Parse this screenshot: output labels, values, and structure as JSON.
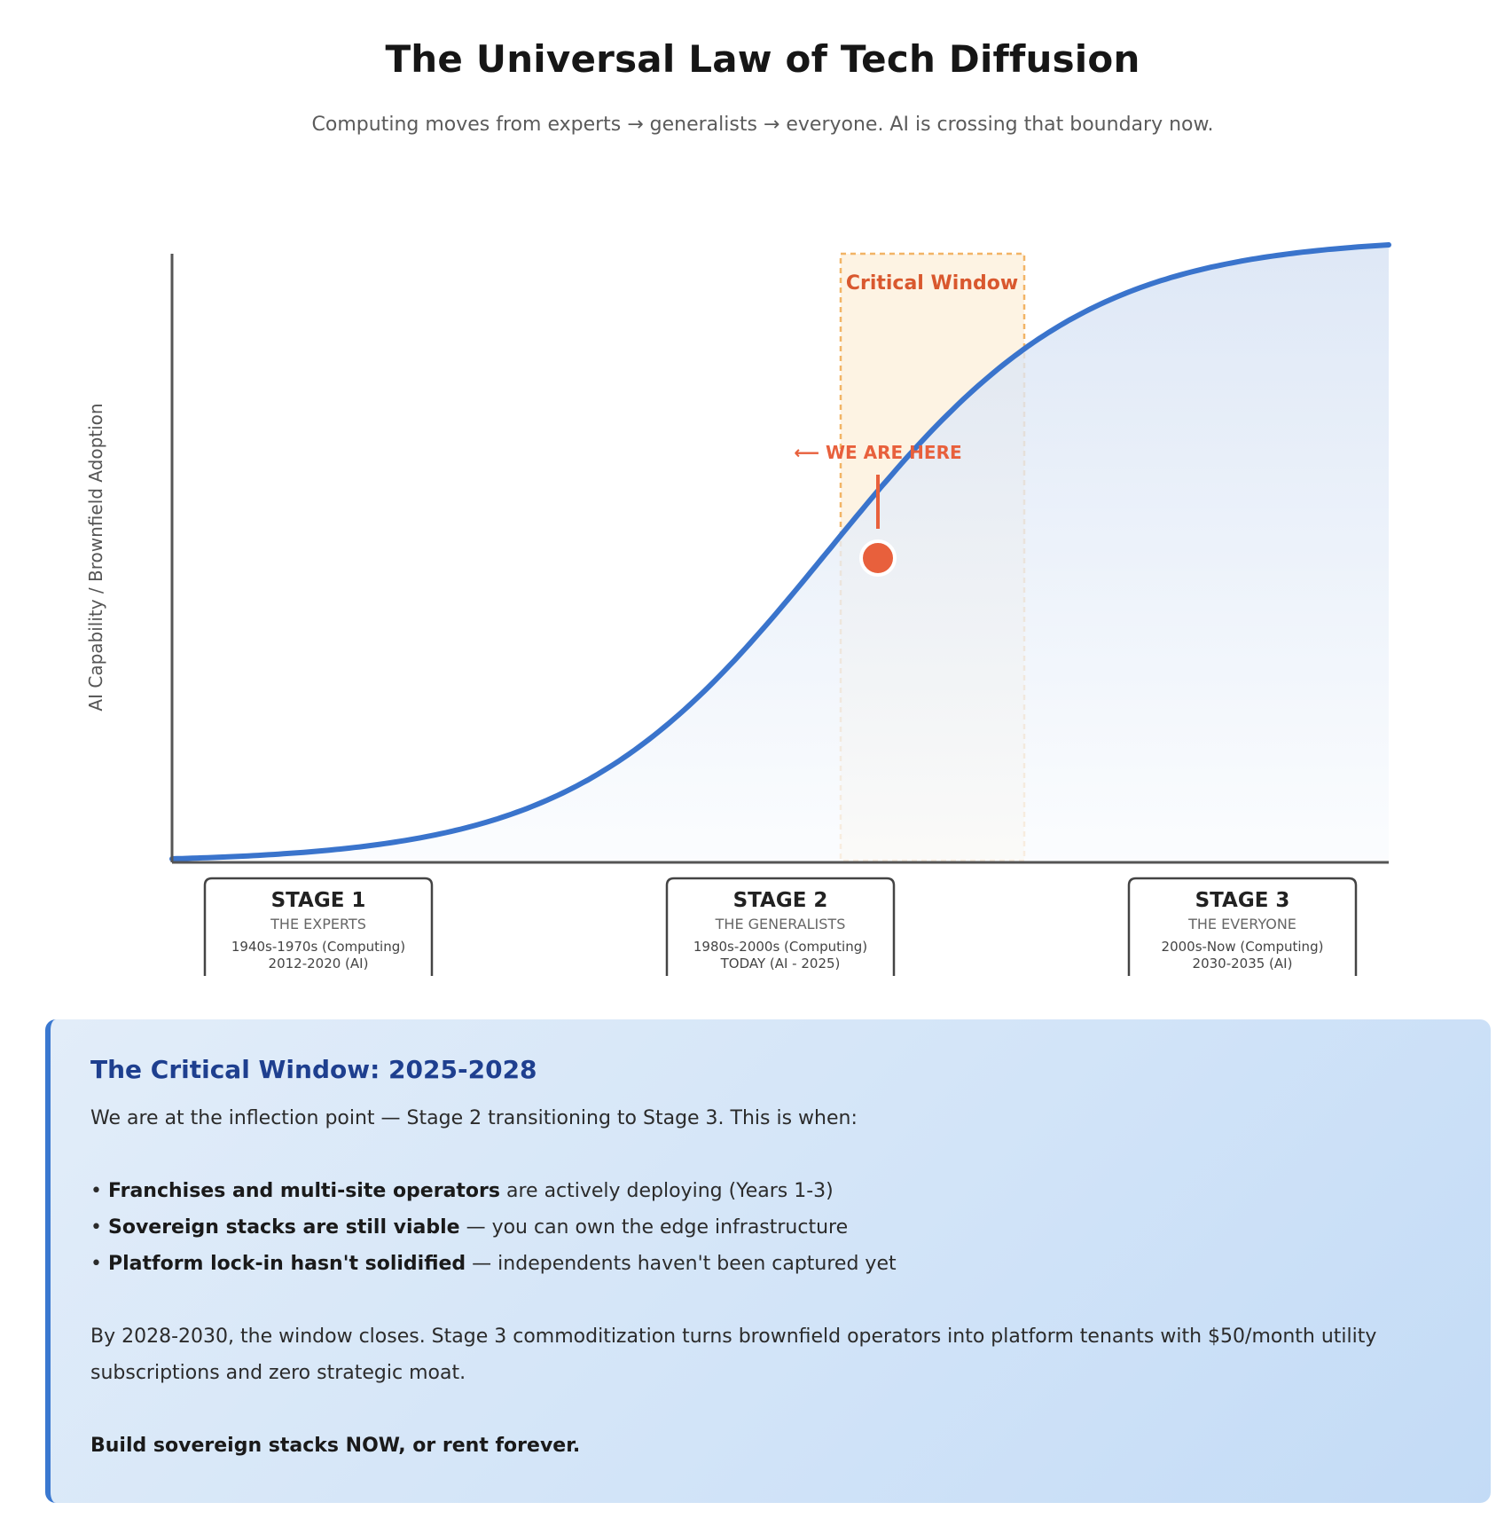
{
  "header": {
    "title": "The Universal Law of Tech Diffusion",
    "subtitle": "Computing moves from experts → generalists → everyone. AI is crossing that boundary now."
  },
  "chart_data": {
    "type": "area",
    "ylabel": "AI Capability / Brownfield Adoption",
    "xlabel": "",
    "curve": "logistic (S-curve)",
    "stages": [
      {
        "title": "STAGE 1",
        "subtitle": "THE EXPERTS",
        "line1": "1940s-1970s (Computing)",
        "line2": "2012-2020 (AI)"
      },
      {
        "title": "STAGE 2",
        "subtitle": "THE GENERALISTS",
        "line1": "1980s-2000s (Computing)",
        "line2": "TODAY (AI - 2025)"
      },
      {
        "title": "STAGE 3",
        "subtitle": "THE EVERYONE",
        "line1": "2000s-Now (Computing)",
        "line2": "2030-2035 (AI)"
      }
    ],
    "critical_window": {
      "label": "Critical Window"
    },
    "marker": {
      "label": "⟵ WE ARE HERE"
    },
    "colors": {
      "curve": "#3a74cc",
      "fill_top": "#d6e2f4",
      "window_fill": "#fdf3e3",
      "window_border": "#f2b466",
      "accent": "#e8603c",
      "window_label": "#d9582e"
    }
  },
  "callout": {
    "heading": "The Critical Window: 2025-2028",
    "intro": "We are at the inflection point — Stage 2 transitioning to Stage 3. This is when:",
    "bullets": [
      {
        "bold": "Franchises and multi-site operators",
        "rest": " are actively deploying (Years 1-3)"
      },
      {
        "bold": "Sovereign stacks are still viable",
        "rest": " — you can own the edge infrastructure"
      },
      {
        "bold": "Platform lock-in hasn't solidified",
        "rest": " — independents haven't been captured yet"
      }
    ],
    "closing": "By 2028-2030, the window closes. Stage 3 commoditization turns brownfield operators into platform tenants with $50/month utility subscriptions and zero strategic moat.",
    "cta": "Build sovereign stacks NOW, or rent forever."
  }
}
